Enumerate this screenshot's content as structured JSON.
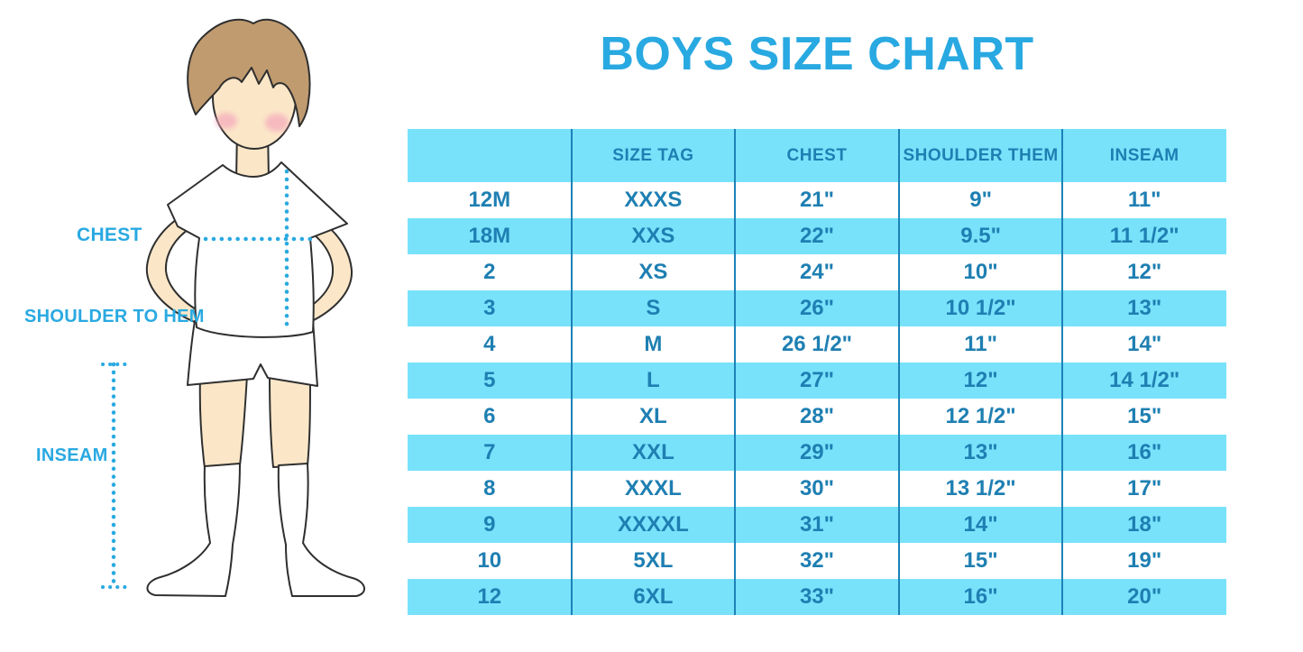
{
  "title": "BOYS SIZE CHART",
  "figure": {
    "chest_label": "CHEST",
    "shoulder_label": "SHOULDER TO HEM",
    "inseam_label": "INSEAM"
  },
  "chart_data": {
    "type": "table",
    "title": "BOYS SIZE CHART",
    "columns": [
      "",
      "SIZE TAG",
      "CHEST",
      "SHOULDER THEM",
      "INSEAM"
    ],
    "rows": [
      [
        "12M",
        "XXXS",
        "21\"",
        "9\"",
        "11\""
      ],
      [
        "18M",
        "XXS",
        "22\"",
        "9.5\"",
        "11 1/2\""
      ],
      [
        "2",
        "XS",
        "24\"",
        "10\"",
        "12\""
      ],
      [
        "3",
        "S",
        "26\"",
        "10 1/2\"",
        "13\""
      ],
      [
        "4",
        "M",
        "26 1/2\"",
        "11\"",
        "14\""
      ],
      [
        "5",
        "L",
        "27\"",
        "12\"",
        "14 1/2\""
      ],
      [
        "6",
        "XL",
        "28\"",
        "12 1/2\"",
        "15\""
      ],
      [
        "7",
        "XXL",
        "29\"",
        "13\"",
        "16\""
      ],
      [
        "8",
        "XXXL",
        "30\"",
        "13 1/2\"",
        "17\""
      ],
      [
        "9",
        "XXXXL",
        "31\"",
        "14\"",
        "18\""
      ],
      [
        "10",
        "5XL",
        "32\"",
        "15\"",
        "19\""
      ],
      [
        "12",
        "6XL",
        "33\"",
        "16\"",
        "20\""
      ]
    ],
    "measurement_labels": [
      "CHEST",
      "SHOULDER TO HEM",
      "INSEAM"
    ],
    "layout": {
      "row_band_style": "alternating white / light cyan",
      "header_band": true,
      "vertical_dividers": 4
    }
  },
  "colors": {
    "accent_blue": "#29A9E1",
    "band_cyan": "#78E2FB",
    "table_text_blue": "#1E7FB2",
    "divider_blue": "#1C82B8",
    "skin": "#FBE7C8",
    "hair": "#C09B6F",
    "cheek_pink": "#F4A7BC",
    "outline": "#2F2F2F"
  }
}
